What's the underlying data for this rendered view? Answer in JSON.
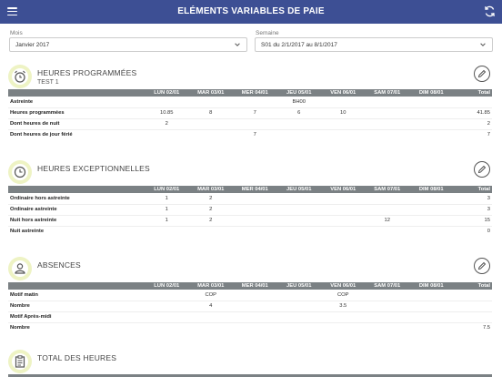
{
  "header": {
    "title": "ELÉMENTS VARIABLES DE PAIE"
  },
  "filters": {
    "month_label": "Mois",
    "month_value": "Janvier 2017",
    "week_label": "Semaine",
    "week_value": "S01 du 2/1/2017 au 8/1/2017"
  },
  "days": [
    "LUN 02/01",
    "MAR 03/01",
    "MER 04/01",
    "JEU 05/01",
    "VEN 06/01",
    "SAM 07/01",
    "DIM 08/01"
  ],
  "total_label": "Total",
  "sections": [
    {
      "title": "HEURES PROGRAMMÉES",
      "subtitle": "TEST 1",
      "icon": "alarm-clock-icon",
      "rows": [
        {
          "label": "Astreinte",
          "cells": [
            "",
            "",
            "",
            "BH00",
            "",
            "",
            ""
          ],
          "total": ""
        },
        {
          "label": "Heures programmées",
          "cells": [
            "10.85",
            "8",
            "7",
            "6",
            "10",
            "",
            ""
          ],
          "total": "41.85"
        },
        {
          "label": "Dont heures de nuit",
          "cells": [
            "2",
            "",
            "",
            "",
            "",
            "",
            ""
          ],
          "total": "2"
        },
        {
          "label": "Dont heures de jour férié",
          "cells": [
            "",
            "",
            "7",
            "",
            "",
            "",
            ""
          ],
          "total": "7"
        }
      ]
    },
    {
      "title": "HEURES EXCEPTIONNELLES",
      "subtitle": "",
      "icon": "clock-icon",
      "rows": [
        {
          "label": "Ordinaire hors astreinte",
          "cells": [
            "1",
            "2",
            "",
            "",
            "",
            "",
            ""
          ],
          "total": "3"
        },
        {
          "label": "Ordinaire astreinte",
          "cells": [
            "1",
            "2",
            "",
            "",
            "",
            "",
            ""
          ],
          "total": "3"
        },
        {
          "label": "Nuit hors astreinte",
          "cells": [
            "1",
            "2",
            "",
            "",
            "",
            "12",
            ""
          ],
          "total": "15"
        },
        {
          "label": "Nuit astreinte",
          "cells": [
            "",
            "",
            "",
            "",
            "",
            "",
            ""
          ],
          "total": "0"
        }
      ]
    },
    {
      "title": "ABSENCES",
      "subtitle": "",
      "icon": "user-icon",
      "rows": [
        {
          "label": "Motif matin",
          "cells": [
            "",
            "COP",
            "",
            "",
            "COP",
            "",
            ""
          ],
          "total": ""
        },
        {
          "label": "Nombre",
          "cells": [
            "",
            "4",
            "",
            "",
            "3.5",
            "",
            ""
          ],
          "total": ""
        },
        {
          "label": "Motif Après-midi",
          "cells": [
            "",
            "",
            "",
            "",
            "",
            "",
            ""
          ],
          "total": ""
        },
        {
          "label": "Nombre",
          "cells": [
            "",
            "",
            "",
            "",
            "",
            "",
            ""
          ],
          "total": "7.5"
        }
      ]
    },
    {
      "title": "TOTAL DES HEURES",
      "subtitle": "",
      "icon": "clipboard-icon",
      "rows": []
    }
  ],
  "colors": {
    "header_bg": "#3d4f94",
    "table_head_bg": "#7b8184",
    "badge_bg": "#eef3c4"
  }
}
